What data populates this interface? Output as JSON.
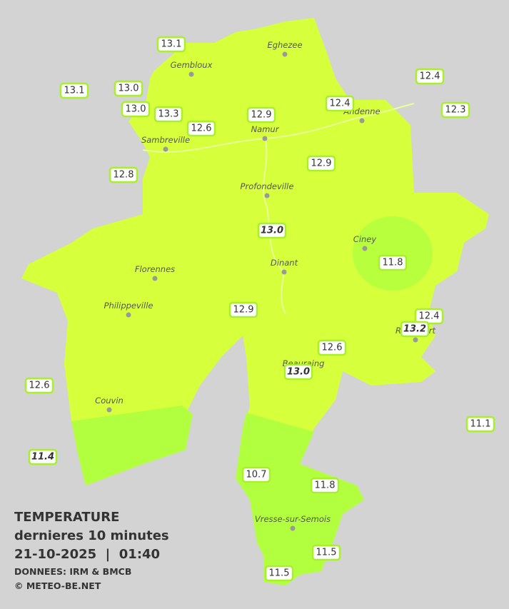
{
  "header": {
    "title": "TEMPERATURE",
    "subtitle": "dernieres 10 minutes",
    "datetime": "21-10-2025  |  01:40",
    "source": "DONNEES: IRM & BMCB",
    "credit": "© METEO-BE.NET"
  },
  "cities": [
    "Eghezee",
    "Gembloux",
    "Andenne",
    "Namur",
    "Sambreville",
    "Profondeville",
    "Ciney",
    "Florennes",
    "Dinant",
    "Philippeville",
    "Rochefort",
    "Beauraing",
    "Couvin",
    "Vresse-sur-Semois"
  ],
  "stations": [
    "13.1",
    "13.1",
    "13.0",
    "13.0",
    "13.3",
    "12.6",
    "12.9",
    "12.4",
    "12.4",
    "12.3",
    "12.8",
    "12.9",
    "13.0",
    "11.8",
    "12.9",
    "12.4",
    "13.2",
    "12.6",
    "13.0",
    "12.6",
    "11.1",
    "11.4",
    "10.7",
    "11.8",
    "11.5",
    "11.5"
  ]
}
